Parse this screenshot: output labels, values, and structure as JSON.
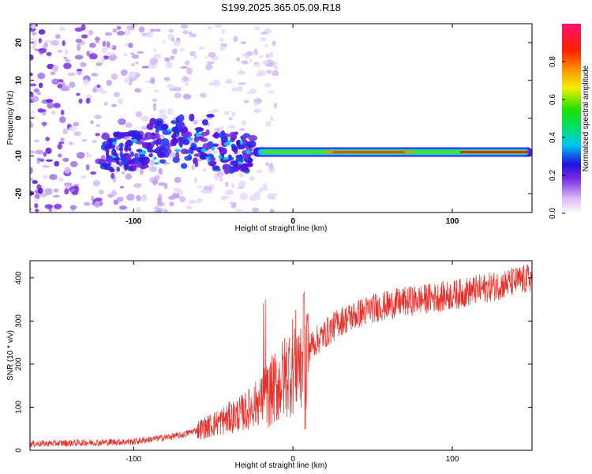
{
  "title": "S199.2025.365.05.09.R18",
  "chart_data": [
    {
      "type": "heatmap",
      "name": "spectrogram",
      "xlabel": "Height of straight line (km)",
      "ylabel": "Frequency (Hz)",
      "xlim": [
        -165,
        150
      ],
      "ylim": [
        -25,
        25
      ],
      "xticks": [
        -100,
        0,
        100
      ],
      "yticks": [
        -20,
        -10,
        0,
        10,
        20
      ],
      "colorbar": {
        "label": "Normalized spectral amplitude",
        "ticks": [
          0.0,
          0.2,
          0.4,
          0.6,
          0.8
        ],
        "range": [
          0,
          1
        ]
      },
      "description_values": {
        "noise_region_x": [
          -165,
          -30
        ],
        "tone_frequency_hz": -9,
        "tone_start_x": -25,
        "tone_end_x": 150
      }
    },
    {
      "type": "line",
      "name": "snr",
      "xlabel": "Height of straight line (km)",
      "ylabel": "SNR (10 * v/v)",
      "xlim": [
        -165,
        150
      ],
      "ylim": [
        0,
        440
      ],
      "xticks": [
        -100,
        0,
        100
      ],
      "yticks": [
        0,
        100,
        200,
        300,
        400
      ],
      "color": "#e8302a",
      "trend": {
        "x": [
          -165,
          -100,
          -70,
          -50,
          -30,
          -15,
          -5,
          0,
          10,
          20,
          30,
          50,
          70,
          100,
          150
        ],
        "y": [
          15,
          20,
          35,
          60,
          90,
          130,
          170,
          200,
          240,
          270,
          300,
          330,
          345,
          360,
          400
        ]
      }
    }
  ]
}
